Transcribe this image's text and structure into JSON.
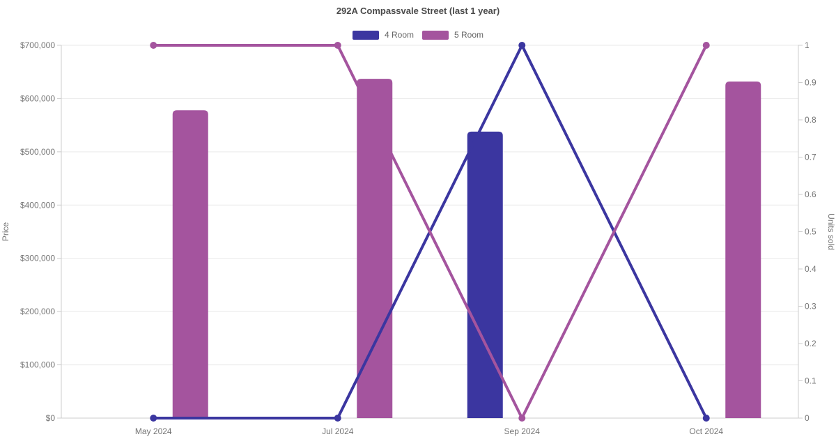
{
  "chart_data": {
    "type": "bar+line",
    "title": "292A Compassvale Street (last 1 year)",
    "categories": [
      "May 2024",
      "Jul 2024",
      "Sep 2024",
      "Oct 2024"
    ],
    "legend": [
      {
        "label": "4 Room",
        "color_key": "four_room"
      },
      {
        "label": "5 Room",
        "color_key": "five_room"
      }
    ],
    "legend_position": "top-center",
    "grid": "horizontal gridlines from left-axis ticks only",
    "colors": {
      "four_room": "#3b36a0",
      "five_room": "#a4549e",
      "grid": "#e9e9e9",
      "axis": "#cccccc",
      "tick_text": "#757575",
      "title_text": "#4a4a4a",
      "legend_text": "#666666",
      "background": "#ffffff"
    },
    "left_axis": {
      "label": "Price",
      "min": 0,
      "max": 700000,
      "ticks": [
        0,
        100000,
        200000,
        300000,
        400000,
        500000,
        600000,
        700000
      ],
      "tick_labels": [
        "$0",
        "$100,000",
        "$200,000",
        "$300,000",
        "$400,000",
        "$500,000",
        "$600,000",
        "$700,000"
      ]
    },
    "right_axis": {
      "label": "Units sold",
      "min": 0,
      "max": 1,
      "ticks": [
        0,
        0.1,
        0.2,
        0.3,
        0.4,
        0.5,
        0.6,
        0.7,
        0.8,
        0.9,
        1
      ],
      "tick_labels": [
        "0",
        "0.1",
        "0.2",
        "0.3",
        "0.4",
        "0.5",
        "0.6",
        "0.7",
        "0.8",
        "0.9",
        "1"
      ]
    },
    "series": [
      {
        "name": "4 Room",
        "kind": "bar",
        "axis": "left",
        "color_key": "four_room",
        "values": [
          null,
          null,
          538000,
          null
        ]
      },
      {
        "name": "5 Room",
        "kind": "bar",
        "axis": "left",
        "color_key": "five_room",
        "values": [
          578000,
          637000,
          null,
          632000
        ]
      },
      {
        "name": "4 Room",
        "kind": "line",
        "axis": "right",
        "color_key": "four_room",
        "values": [
          0,
          0,
          1,
          0
        ]
      },
      {
        "name": "5 Room",
        "kind": "line",
        "axis": "right",
        "color_key": "five_room",
        "values": [
          1,
          1,
          0,
          1
        ]
      }
    ]
  }
}
